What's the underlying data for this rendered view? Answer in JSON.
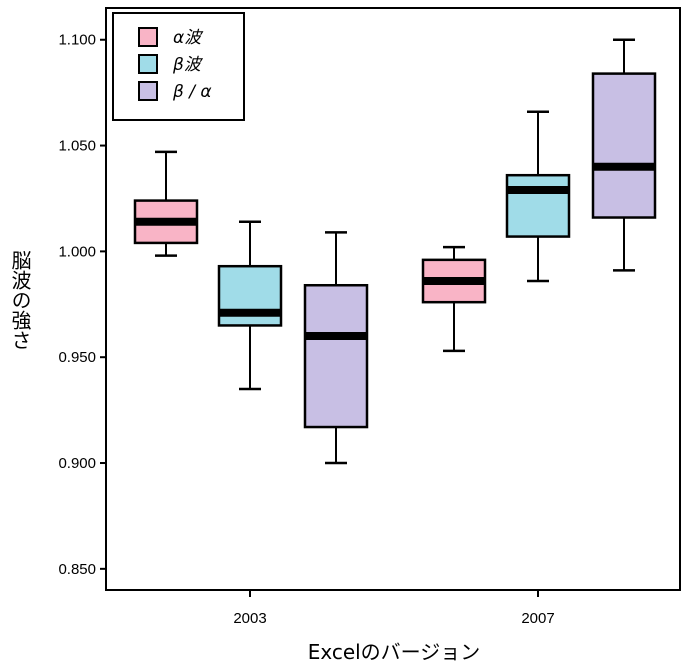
{
  "chart_data": {
    "type": "boxplot",
    "xlabel": "Excelのバージョン",
    "ylabel": "脳波の強さ",
    "categories": [
      "2003",
      "2007"
    ],
    "ylim": [
      0.84,
      1.115
    ],
    "yticks": [
      {
        "value": 0.85,
        "label": "0.850"
      },
      {
        "value": 0.9,
        "label": "0.900"
      },
      {
        "value": 0.95,
        "label": "0.950"
      },
      {
        "value": 1.0,
        "label": "1.000"
      },
      {
        "value": 1.05,
        "label": "1.050"
      },
      {
        "value": 1.1,
        "label": "1.100"
      }
    ],
    "legend": {
      "position": "top-left"
    },
    "series": [
      {
        "name": "α波",
        "color": "#f9b4c6",
        "boxes": [
          {
            "category": "2003",
            "min": 0.998,
            "q1": 1.004,
            "median": 1.014,
            "q3": 1.024,
            "max": 1.047
          },
          {
            "category": "2007",
            "min": 0.953,
            "q1": 0.976,
            "median": 0.986,
            "q3": 0.996,
            "max": 1.002
          }
        ]
      },
      {
        "name": "β波",
        "color": "#a0dce8",
        "boxes": [
          {
            "category": "2003",
            "min": 0.935,
            "q1": 0.965,
            "median": 0.971,
            "q3": 0.993,
            "max": 1.014
          },
          {
            "category": "2007",
            "min": 0.986,
            "q1": 1.007,
            "median": 1.029,
            "q3": 1.036,
            "max": 1.066
          }
        ]
      },
      {
        "name": "β / α",
        "color": "#c8bfe4",
        "boxes": [
          {
            "category": "2003",
            "min": 0.9,
            "q1": 0.917,
            "median": 0.96,
            "q3": 0.984,
            "max": 1.009
          },
          {
            "category": "2007",
            "min": 0.991,
            "q1": 1.016,
            "median": 1.04,
            "q3": 1.084,
            "max": 1.1
          }
        ]
      }
    ]
  }
}
